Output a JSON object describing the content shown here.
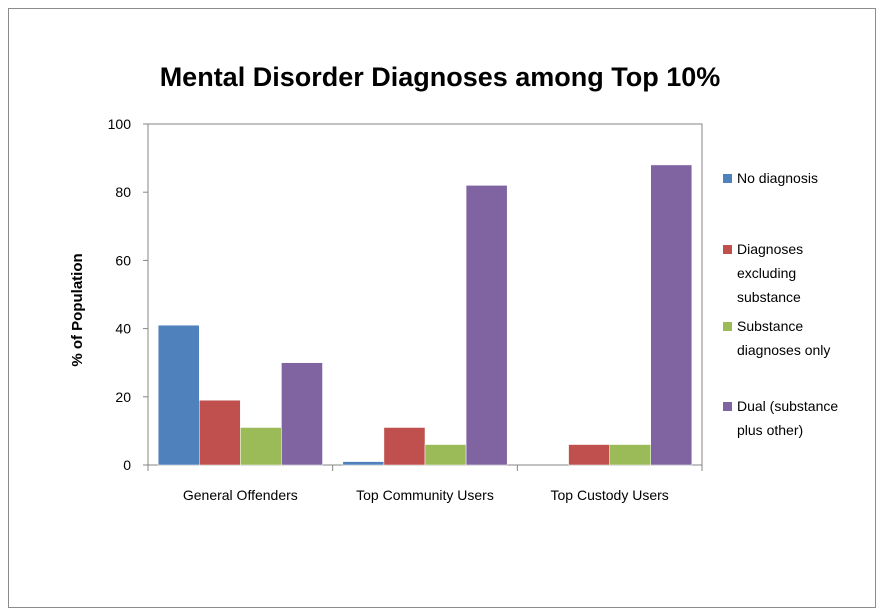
{
  "chart_data": {
    "type": "bar",
    "title": "Mental Disorder Diagnoses among Top 10%",
    "xlabel": "",
    "ylabel": "% of Population",
    "ylim": [
      0,
      100
    ],
    "yticks": [
      0,
      20,
      40,
      60,
      80,
      100
    ],
    "categories": [
      "General Offenders",
      "Top Community Users",
      "Top Custody Users"
    ],
    "series": [
      {
        "name": "No diagnosis",
        "color": "#4f81bd",
        "values": [
          41,
          1,
          0
        ],
        "legend_lines": [
          "No diagnosis"
        ]
      },
      {
        "name": "Diagnoses excluding substance",
        "color": "#c0504d",
        "values": [
          19,
          11,
          6
        ],
        "legend_lines": [
          "Diagnoses",
          "excluding",
          "substance"
        ]
      },
      {
        "name": "Substance diagnoses only",
        "color": "#9bbb59",
        "values": [
          11,
          6,
          6
        ],
        "legend_lines": [
          "Substance",
          "diagnoses only"
        ]
      },
      {
        "name": "Dual (substance plus other)",
        "color": "#8064a2",
        "values": [
          30,
          82,
          88
        ],
        "legend_lines": [
          "Dual (substance",
          "plus other)"
        ]
      }
    ],
    "grid": false,
    "legend_position": "right"
  }
}
